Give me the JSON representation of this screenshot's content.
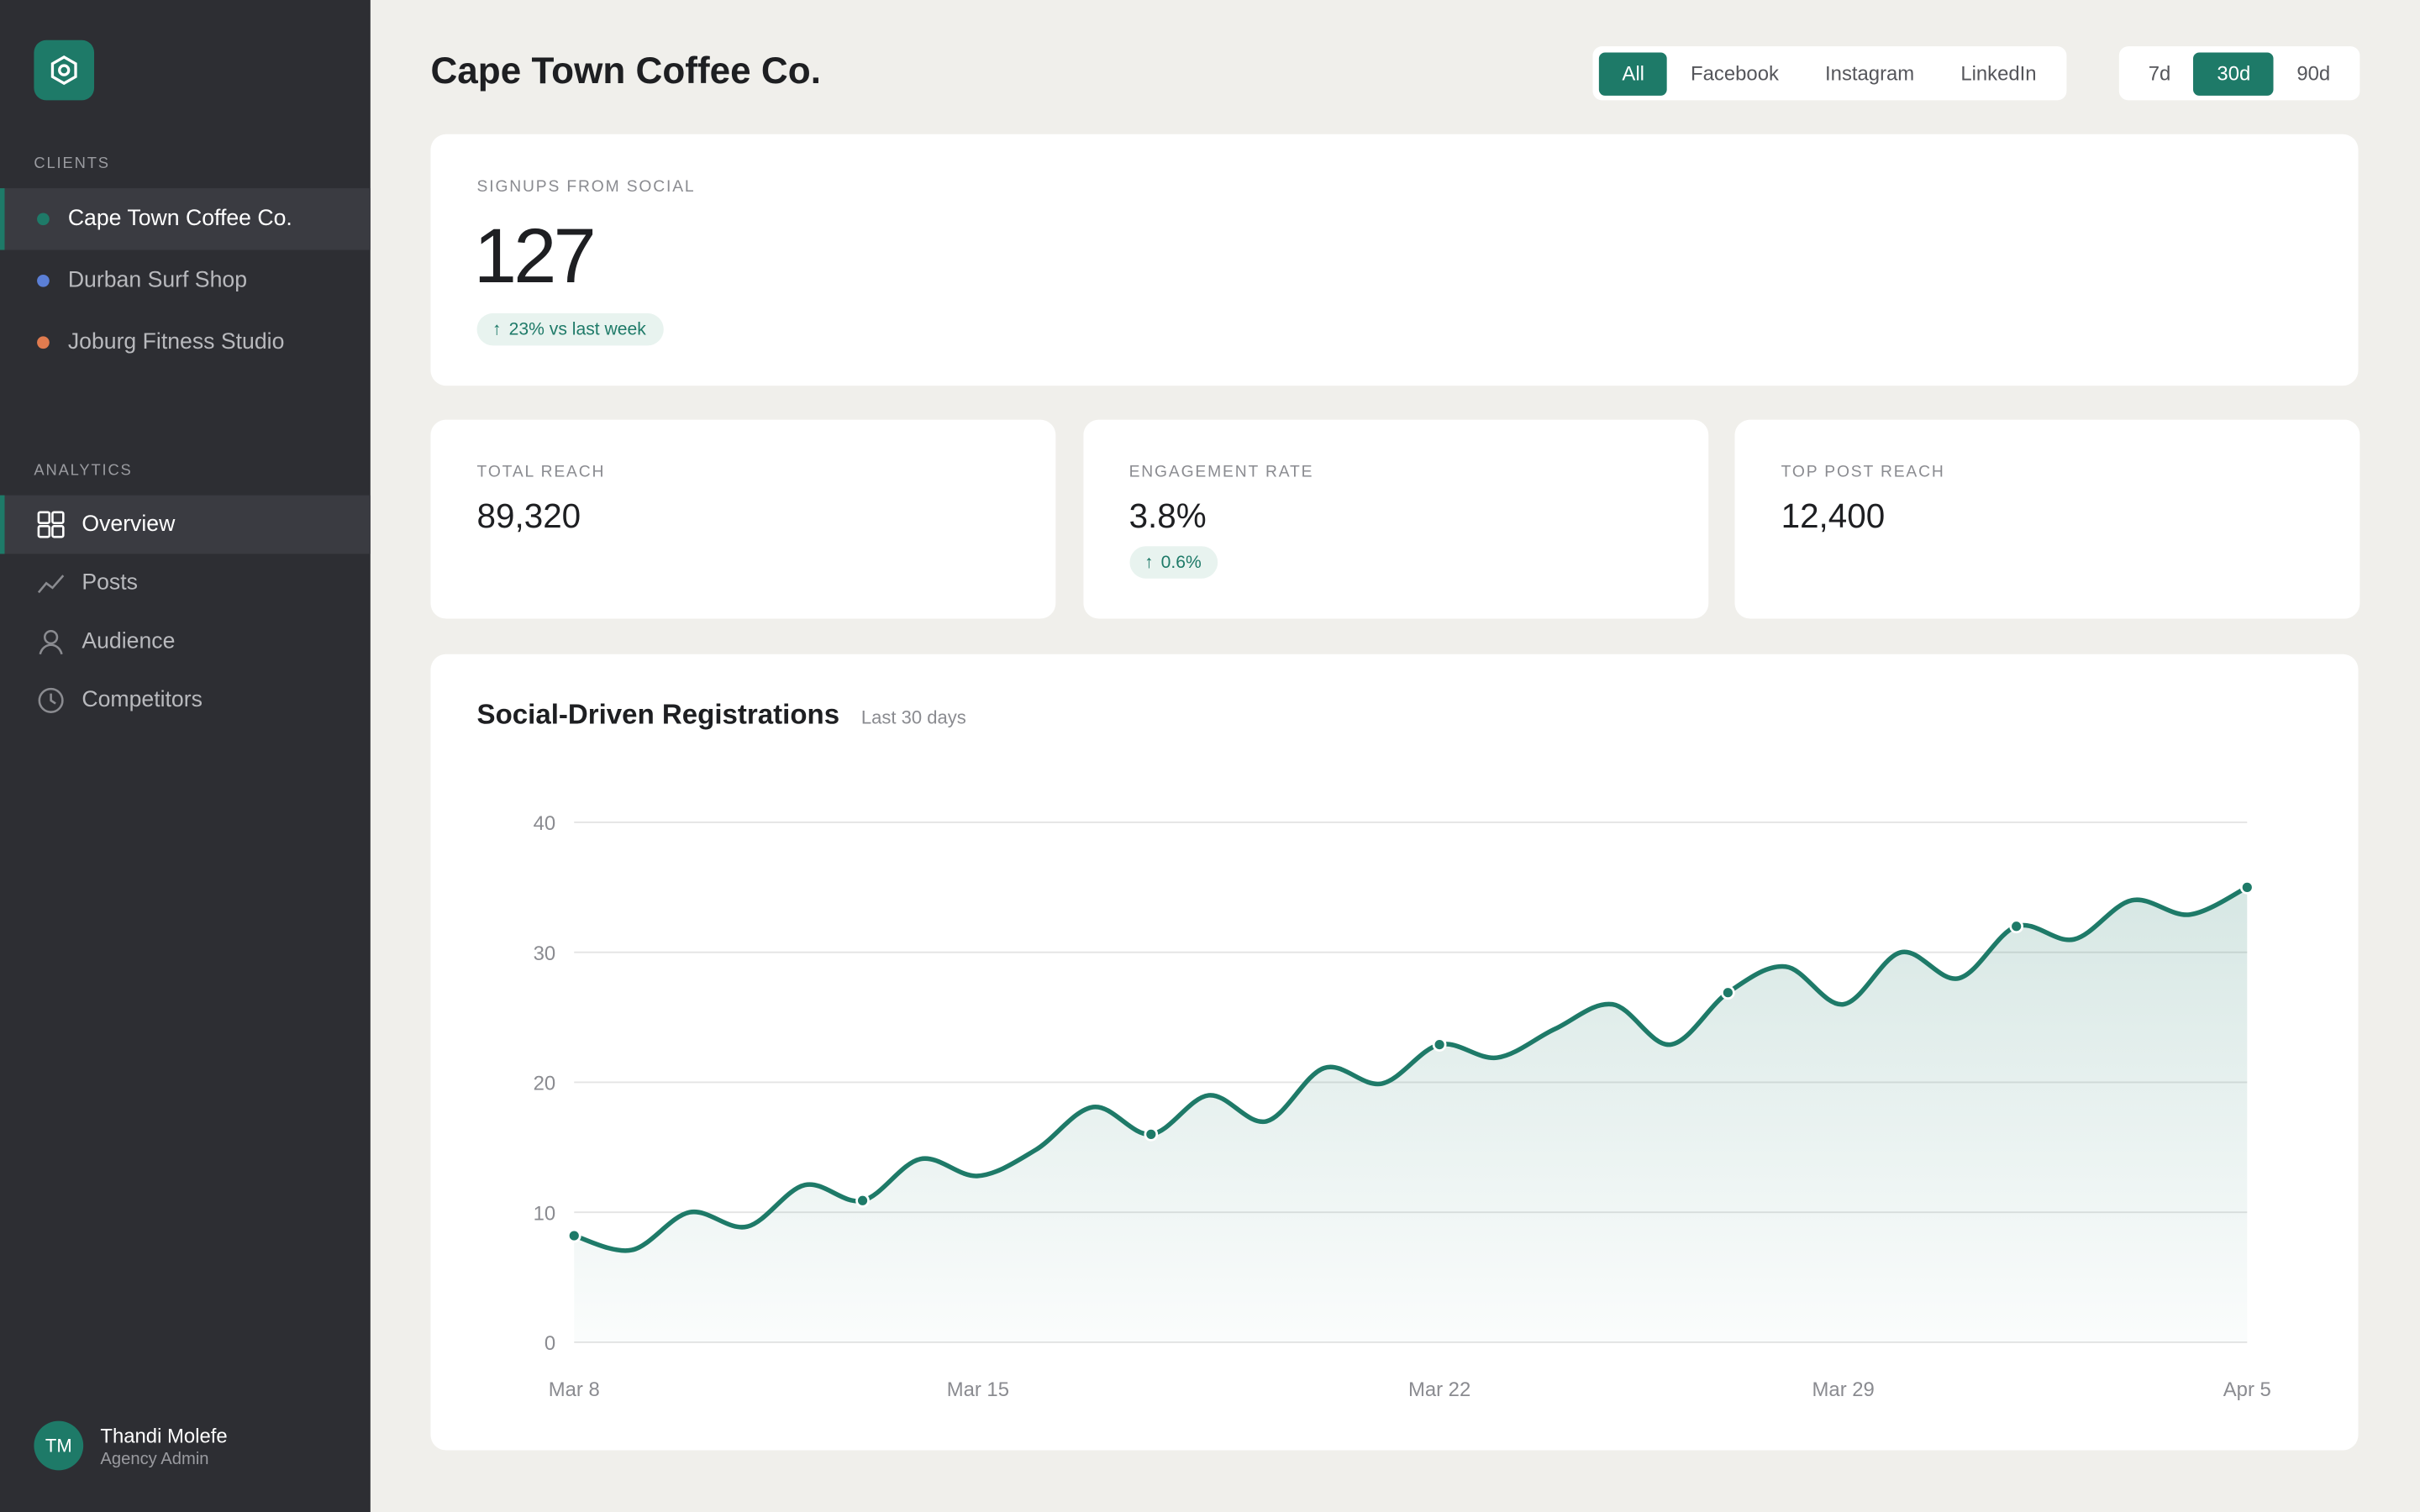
{
  "sidebar": {
    "clients_heading": "CLIENTS",
    "clients": [
      {
        "name": "Cape Town Coffee Co.",
        "color": "#1e7a68"
      },
      {
        "name": "Durban Surf Shop",
        "color": "#5b7fd6"
      },
      {
        "name": "Joburg Fitness Studio",
        "color": "#e07b4f"
      }
    ],
    "active_client": 0,
    "analytics_heading": "ANALYTICS",
    "nav": [
      "Overview",
      "Posts",
      "Audience",
      "Competitors"
    ],
    "active_nav": 0,
    "user": {
      "initials": "TM",
      "name": "Thandi Molefe",
      "role": "Agency Admin"
    }
  },
  "header": {
    "title": "Cape Town Coffee Co.",
    "channels": [
      "All",
      "Facebook",
      "Instagram",
      "LinkedIn"
    ],
    "active_channel": 0,
    "ranges": [
      "7d",
      "30d",
      "90d"
    ],
    "active_range": 1
  },
  "hero": {
    "label": "SIGNUPS FROM SOCIAL",
    "value": "127",
    "change": "23% vs last week"
  },
  "stats": [
    {
      "label": "TOTAL REACH",
      "value": "89,320"
    },
    {
      "label": "ENGAGEMENT RATE",
      "value": "3.8%",
      "change": "0.6%"
    },
    {
      "label": "TOP POST REACH",
      "value": "12,400"
    }
  ],
  "chart_data": {
    "type": "line",
    "title": "Social-Driven Registrations",
    "subtitle": "Last 30 days",
    "categories": [
      "Mar 8",
      null,
      null,
      null,
      null,
      null,
      null,
      "Mar 15",
      null,
      null,
      null,
      null,
      null,
      null,
      null,
      "Mar 22",
      null,
      null,
      null,
      null,
      null,
      null,
      "Mar 29",
      null,
      null,
      null,
      null,
      null,
      null,
      "Apr 5"
    ],
    "values": [
      8.2,
      7.1,
      10.0,
      8.9,
      12.1,
      10.9,
      14.1,
      12.8,
      14.8,
      18.1,
      16.0,
      19.0,
      17.0,
      21.1,
      19.9,
      22.9,
      21.9,
      24.1,
      26.0,
      22.9,
      26.9,
      28.9,
      26.0,
      30.0,
      28.0,
      32.0,
      31.0,
      34.0,
      32.9,
      35.0
    ],
    "color": "#1e7a68",
    "ylim": [
      0,
      40
    ],
    "yticks": [
      0,
      10,
      20,
      30,
      40
    ],
    "grid": true
  }
}
